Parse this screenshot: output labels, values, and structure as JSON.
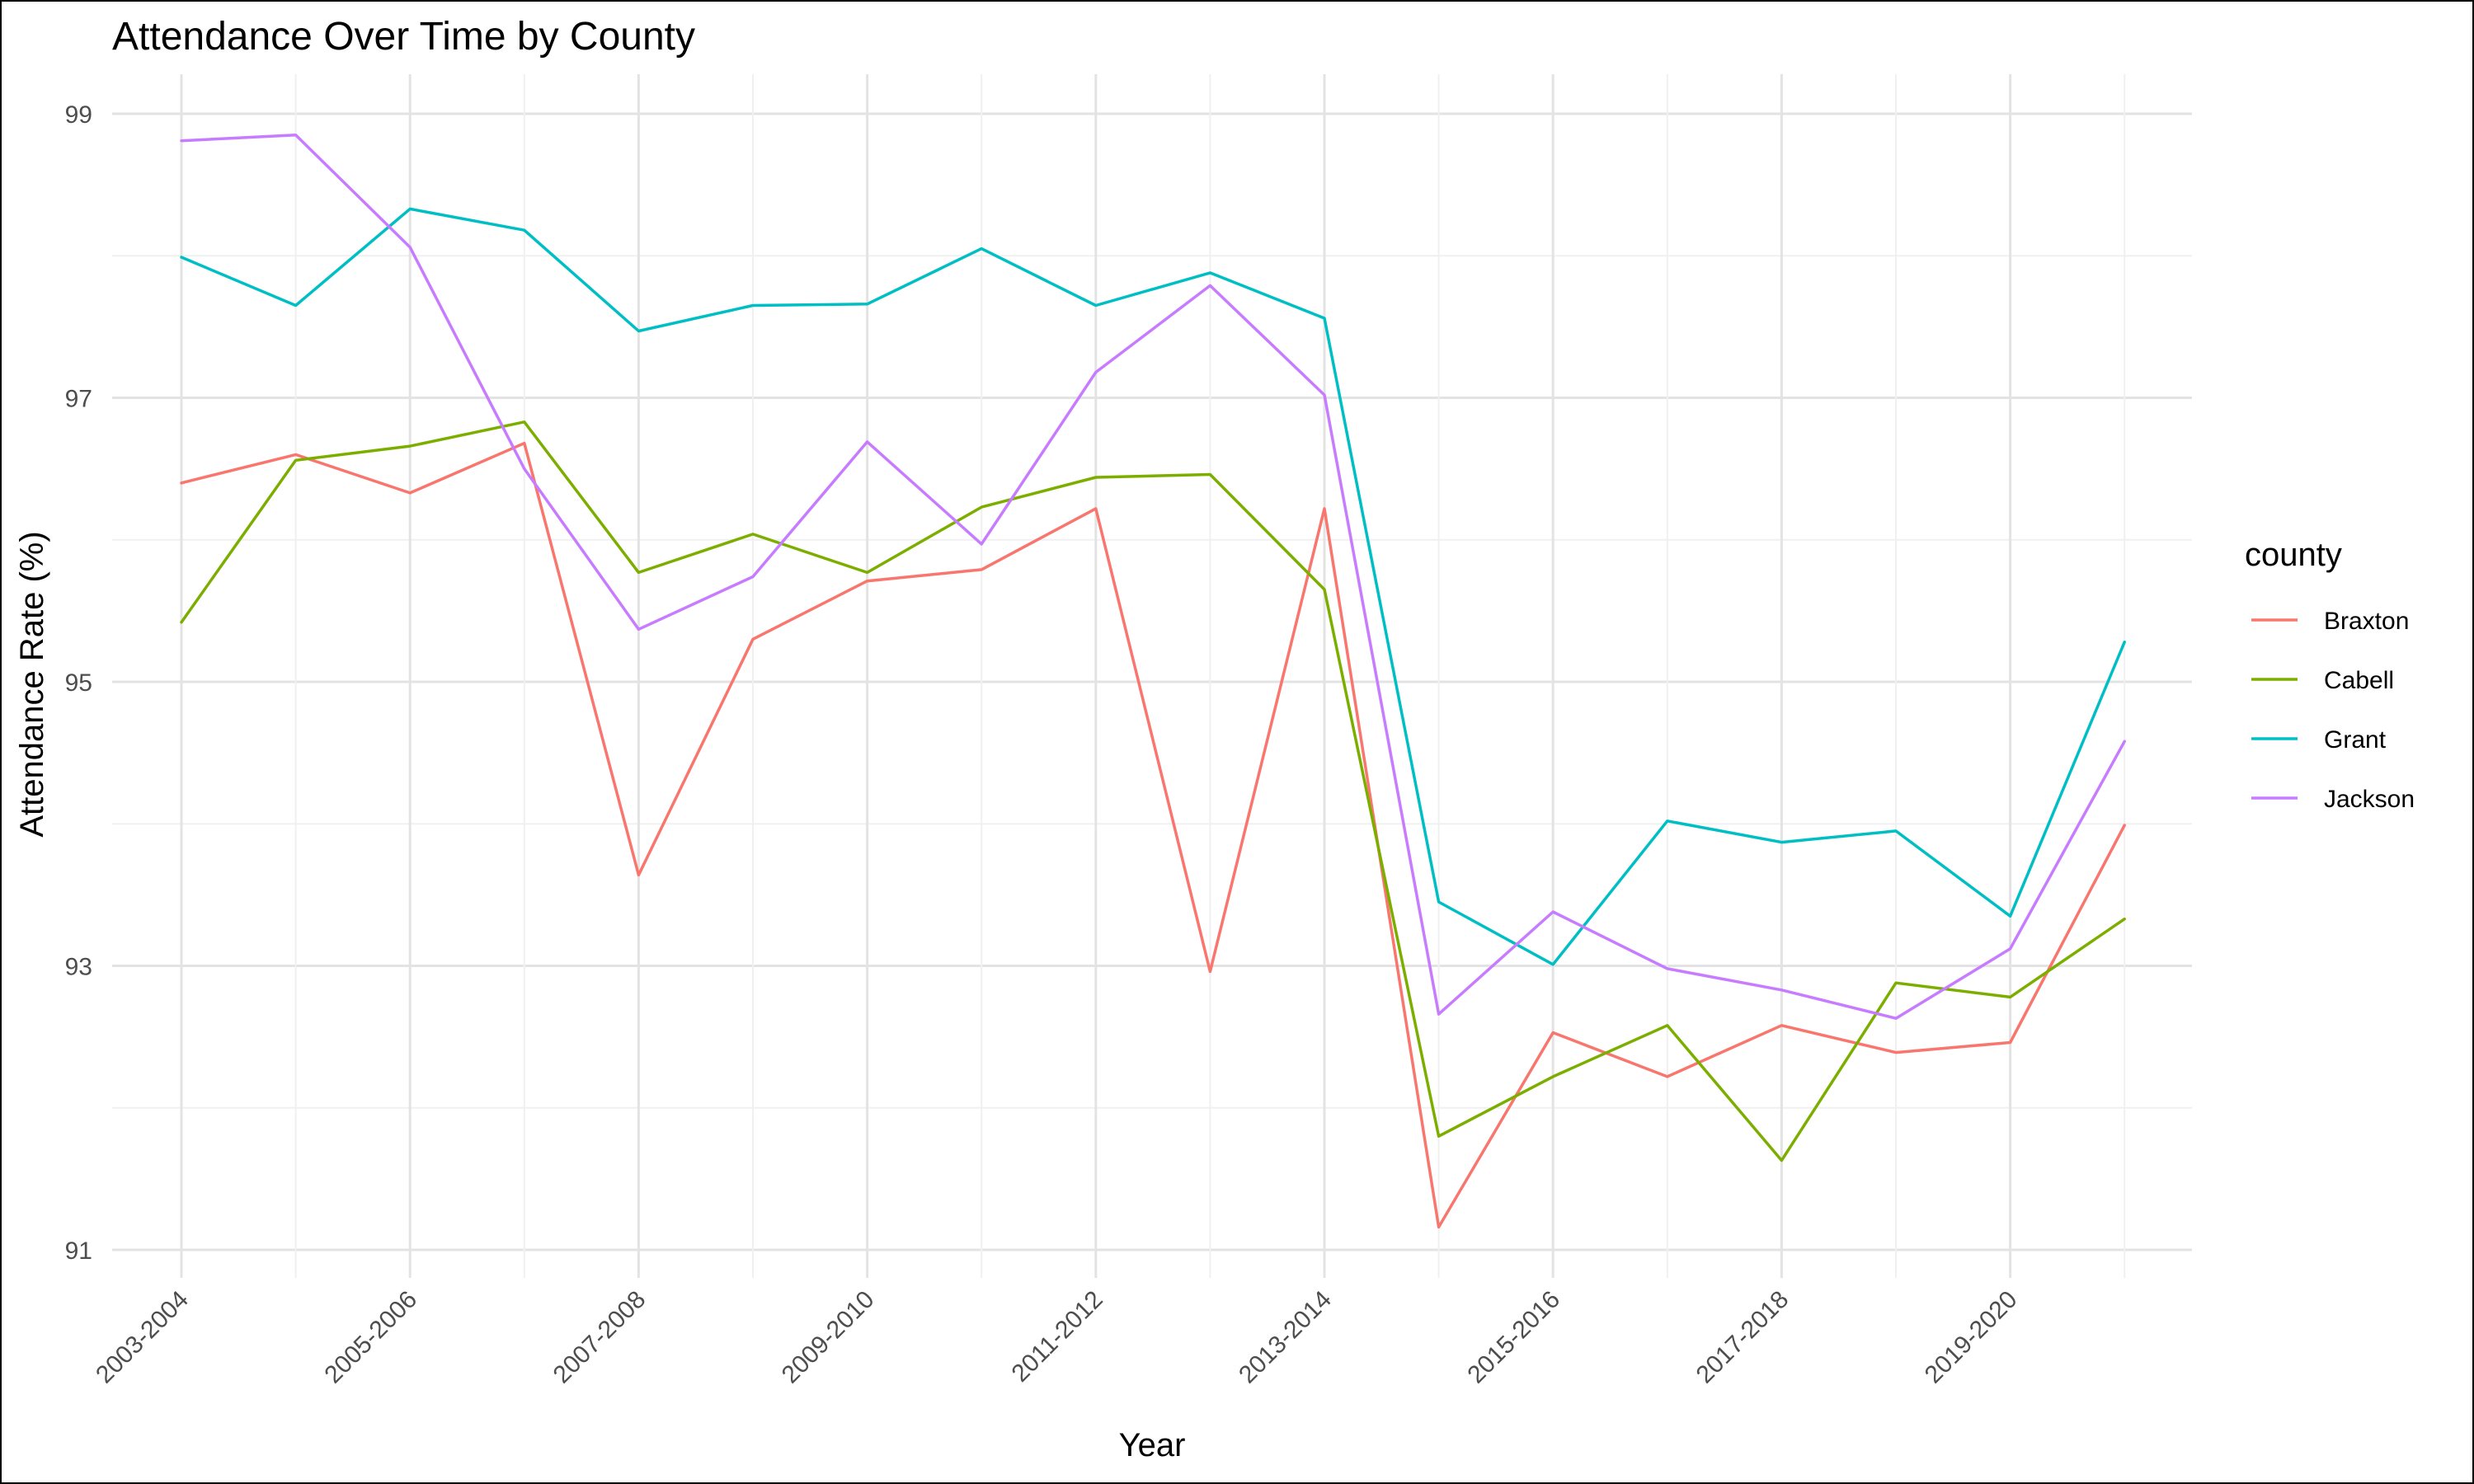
{
  "chart_data": {
    "type": "line",
    "title": "Attendance Over Time by County",
    "xlabel": "Year",
    "ylabel": "Attendance Rate (%)",
    "ylim": [
      91,
      99
    ],
    "y_ticks": [
      91,
      93,
      95,
      97,
      99
    ],
    "grid": true,
    "legend": {
      "title": "county",
      "position": "right"
    },
    "x": [
      "2003-2004",
      "2004-2005",
      "2005-2006",
      "2006-2007",
      "2007-2008",
      "2008-2009",
      "2009-2010",
      "2010-2011",
      "2011-2012",
      "2012-2013",
      "2013-2014",
      "2014-2015",
      "2015-2016",
      "2016-2017",
      "2017-2018",
      "2018-2019",
      "2019-2020",
      "2020-2021"
    ],
    "x_tick_labels": [
      "2003-2004",
      "2005-2006",
      "2007-2008",
      "2009-2010",
      "2011-2012",
      "2013-2014",
      "2015-2016",
      "2017-2018",
      "2019-2020"
    ],
    "series": [
      {
        "name": "Braxton",
        "color": "#F8766D",
        "values": [
          96.4,
          96.6,
          96.33,
          96.68,
          93.64,
          95.3,
          95.71,
          95.79,
          96.22,
          92.96,
          96.22,
          91.16,
          92.53,
          92.22,
          92.58,
          92.39,
          92.46,
          93.99
        ]
      },
      {
        "name": "Cabell",
        "color": "#7CAE00",
        "values": [
          95.42,
          96.56,
          96.66,
          96.83,
          95.77,
          96.04,
          95.77,
          96.23,
          96.44,
          96.46,
          95.65,
          91.8,
          92.22,
          92.58,
          91.63,
          92.88,
          92.78,
          93.33
        ]
      },
      {
        "name": "Grant",
        "color": "#00BFC4",
        "values": [
          97.99,
          97.65,
          98.33,
          98.18,
          97.47,
          97.65,
          97.66,
          98.05,
          97.65,
          97.88,
          97.56,
          93.45,
          93.01,
          94.02,
          93.87,
          93.95,
          93.35,
          95.28
        ]
      },
      {
        "name": "Jackson",
        "color": "#C77CFF",
        "values": [
          98.81,
          98.85,
          98.06,
          96.5,
          95.37,
          95.74,
          96.69,
          95.97,
          97.18,
          97.79,
          97.02,
          92.66,
          93.38,
          92.98,
          92.83,
          92.63,
          93.12,
          94.58
        ]
      }
    ]
  }
}
